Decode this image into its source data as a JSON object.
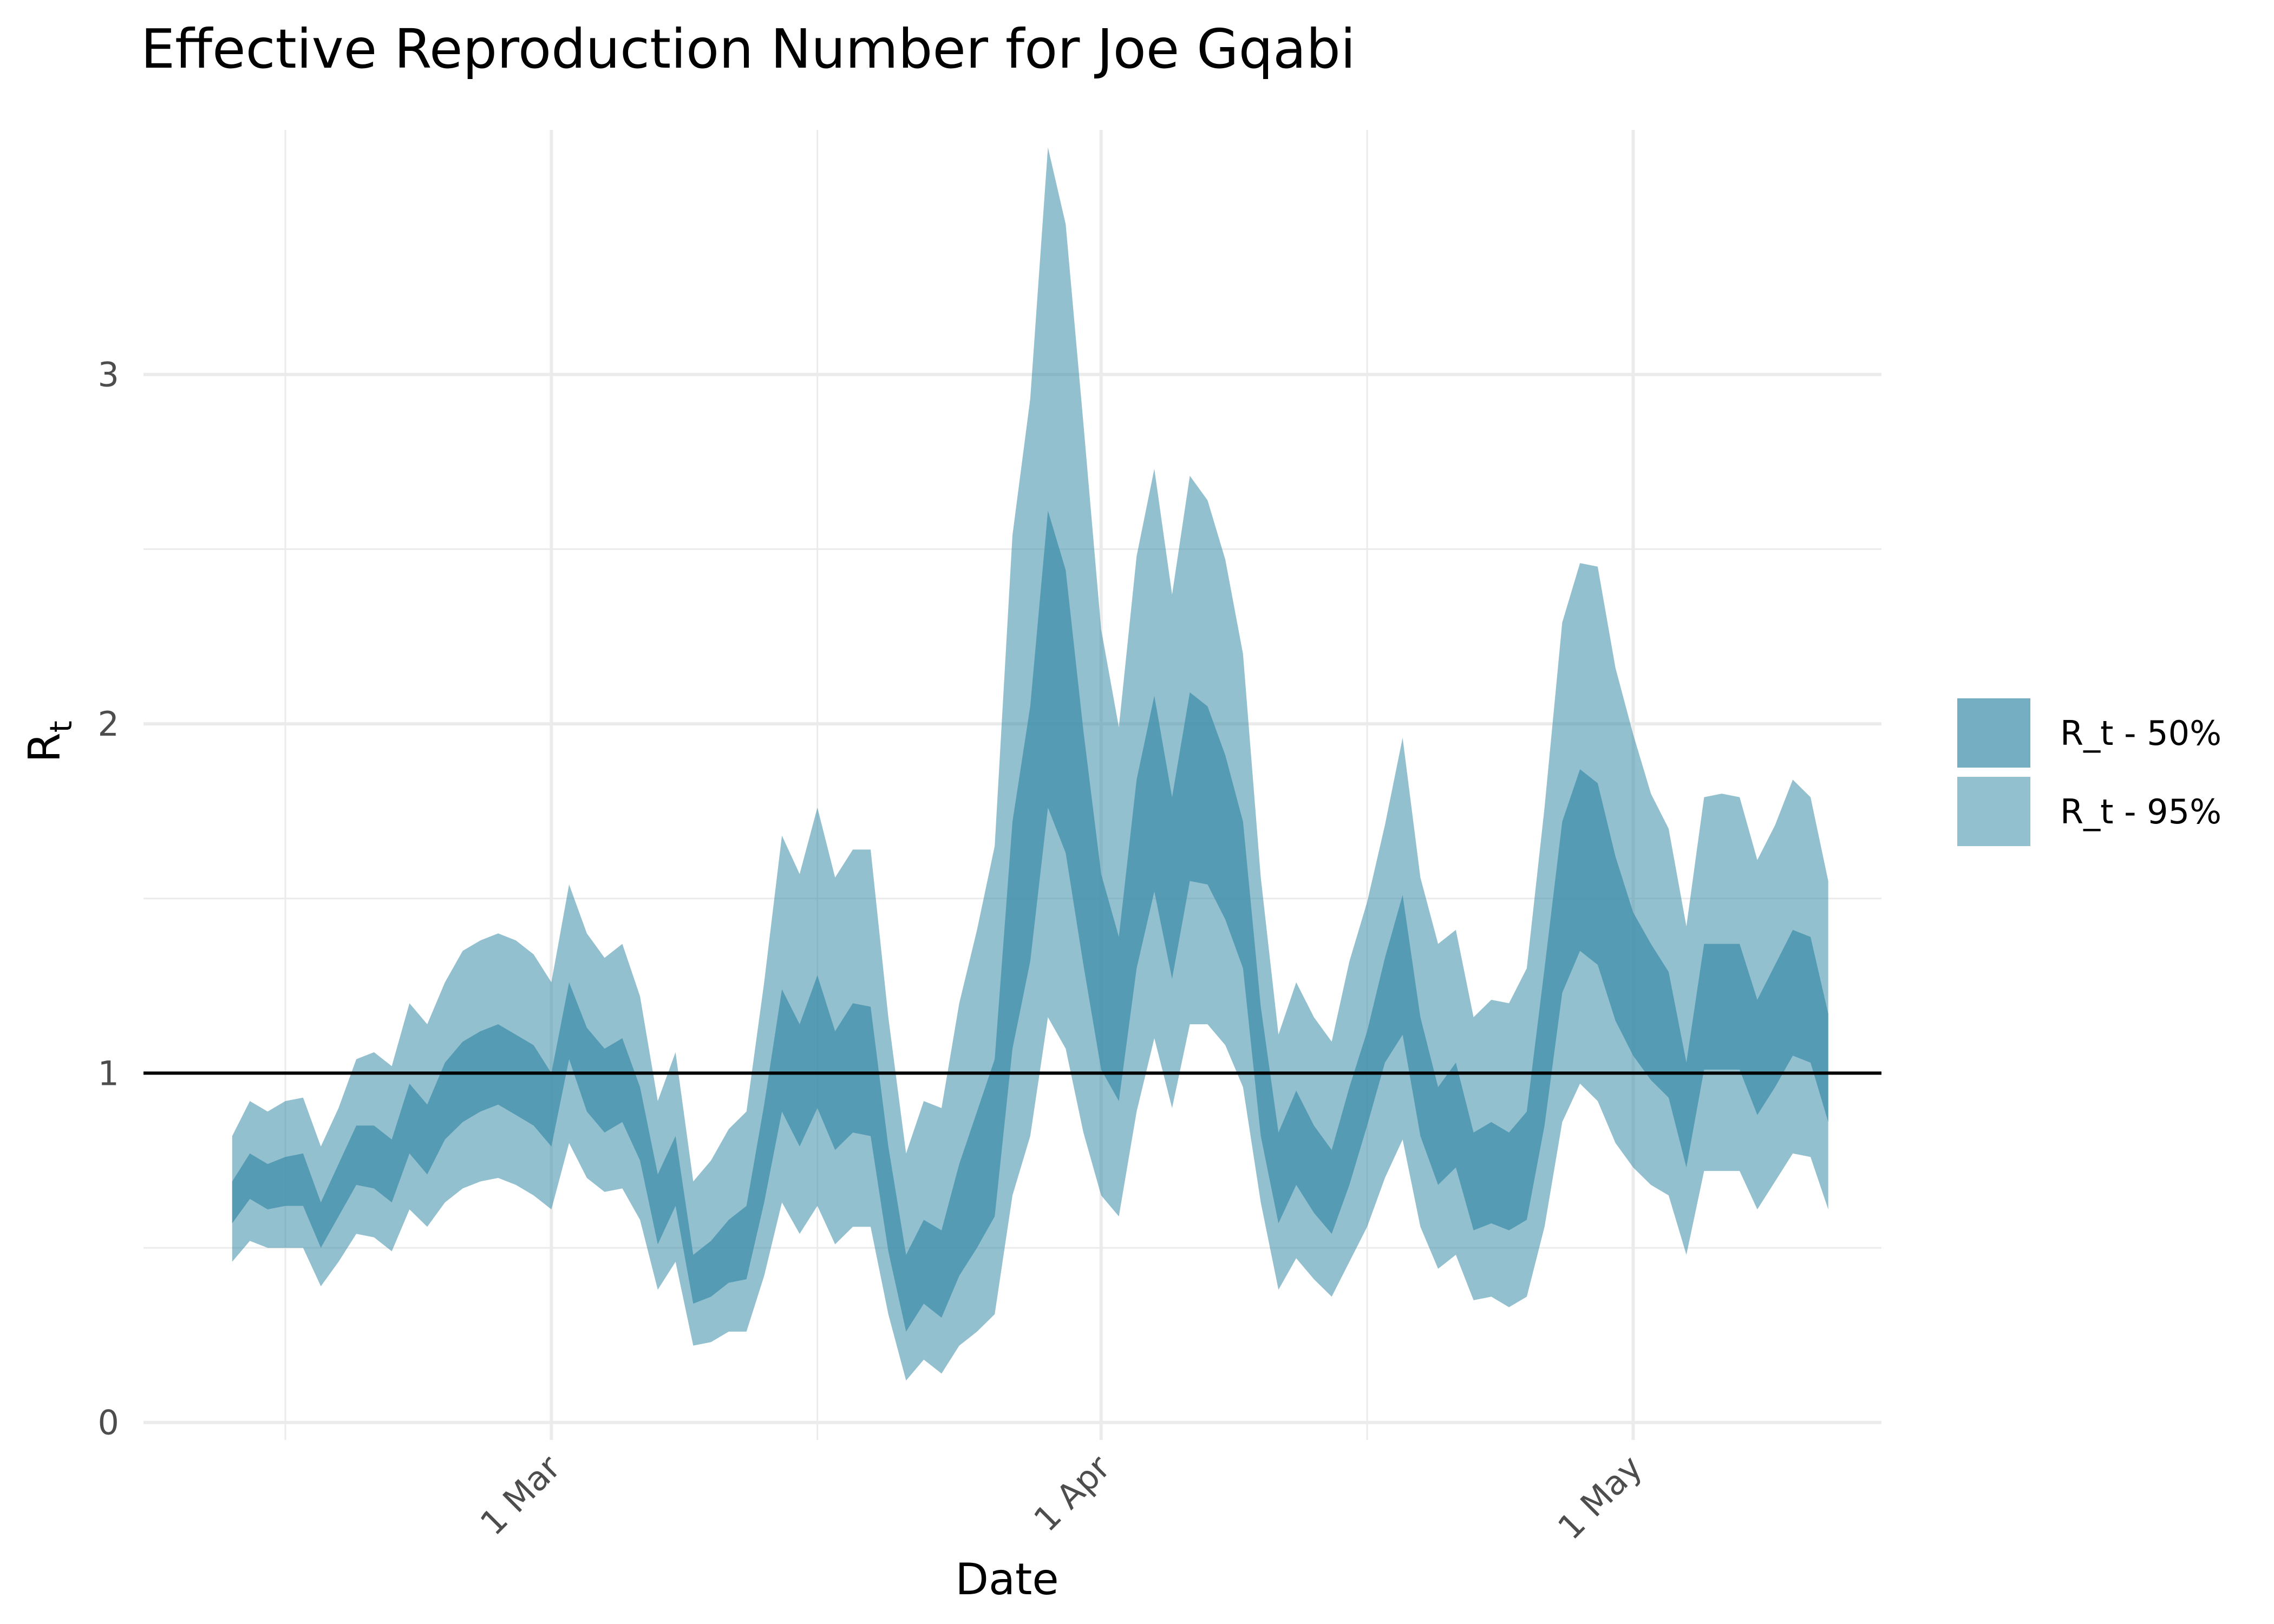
{
  "chart_data": {
    "type": "area",
    "title": "Effective Reproduction Number for Joe Gqabi",
    "xlabel": "Date",
    "ylabel": "R",
    "ylabel_sub": "t",
    "x_ticks": [
      {
        "date": "2020-03-01",
        "label": "1 Mar"
      },
      {
        "date": "2020-04-01",
        "label": "1 Apr"
      },
      {
        "date": "2020-05-01",
        "label": "1 May"
      }
    ],
    "x_minor_ticks": [
      "2020-02-15",
      "2020-03-16",
      "2020-04-16"
    ],
    "xlim": [
      "2020-02-07",
      "2020-05-15"
    ],
    "y_ticks": [
      0,
      1,
      2,
      3
    ],
    "ylim": [
      -0.05,
      3.7
    ],
    "reference_line": 1,
    "grid": true,
    "legend_position": "right",
    "colors": {
      "band50": "#3a8ca8",
      "band95": "#3a8ca8",
      "band50_opacity": 0.7,
      "band95_opacity": 0.55
    },
    "series": [
      {
        "name": "R_t - 50%",
        "x": [
          "2020-02-12",
          "2020-02-13",
          "2020-02-14",
          "2020-02-15",
          "2020-02-16",
          "2020-02-17",
          "2020-02-18",
          "2020-02-19",
          "2020-02-20",
          "2020-02-21",
          "2020-02-22",
          "2020-02-23",
          "2020-02-24",
          "2020-02-25",
          "2020-02-26",
          "2020-02-27",
          "2020-02-28",
          "2020-02-29",
          "2020-03-01",
          "2020-03-02",
          "2020-03-03",
          "2020-03-04",
          "2020-03-05",
          "2020-03-06",
          "2020-03-07",
          "2020-03-08",
          "2020-03-09",
          "2020-03-10",
          "2020-03-11",
          "2020-03-12",
          "2020-03-13",
          "2020-03-14",
          "2020-03-15",
          "2020-03-16",
          "2020-03-17",
          "2020-03-18",
          "2020-03-19",
          "2020-03-20",
          "2020-03-21",
          "2020-03-22",
          "2020-03-23",
          "2020-03-24",
          "2020-03-25",
          "2020-03-26",
          "2020-03-27",
          "2020-03-28",
          "2020-03-29",
          "2020-03-30",
          "2020-03-31",
          "2020-04-01",
          "2020-04-02",
          "2020-04-03",
          "2020-04-04",
          "2020-04-05",
          "2020-04-06",
          "2020-04-07",
          "2020-04-08",
          "2020-04-09",
          "2020-04-10",
          "2020-04-11",
          "2020-04-12",
          "2020-04-13",
          "2020-04-14",
          "2020-04-15",
          "2020-04-16",
          "2020-04-17",
          "2020-04-18",
          "2020-04-19",
          "2020-04-20",
          "2020-04-21",
          "2020-04-22",
          "2020-04-23",
          "2020-04-24",
          "2020-04-25",
          "2020-04-26",
          "2020-04-27",
          "2020-04-28",
          "2020-04-29",
          "2020-04-30",
          "2020-05-01",
          "2020-05-02",
          "2020-05-03",
          "2020-05-04",
          "2020-05-05",
          "2020-05-06",
          "2020-05-07",
          "2020-05-08",
          "2020-05-09",
          "2020-05-10",
          "2020-05-11",
          "2020-05-12"
        ],
        "lower": [
          0.57,
          0.64,
          0.61,
          0.62,
          0.62,
          0.5,
          0.59,
          0.68,
          0.67,
          0.63,
          0.77,
          0.71,
          0.81,
          0.86,
          0.89,
          0.91,
          0.88,
          0.85,
          0.79,
          1.04,
          0.89,
          0.83,
          0.86,
          0.75,
          0.51,
          0.62,
          0.34,
          0.36,
          0.4,
          0.41,
          0.63,
          0.89,
          0.79,
          0.9,
          0.78,
          0.83,
          0.82,
          0.49,
          0.26,
          0.34,
          0.3,
          0.42,
          0.5,
          0.59,
          1.07,
          1.32,
          1.76,
          1.63,
          1.31,
          1.01,
          0.92,
          1.3,
          1.52,
          1.27,
          1.55,
          1.54,
          1.44,
          1.3,
          0.82,
          0.57,
          0.68,
          0.6,
          0.54,
          0.68,
          0.85,
          1.03,
          1.11,
          0.82,
          0.68,
          0.73,
          0.55,
          0.57,
          0.55,
          0.58,
          0.85,
          1.23,
          1.35,
          1.31,
          1.15,
          1.05,
          0.98,
          0.93,
          0.73,
          1.01,
          1.01,
          1.01,
          0.88,
          0.96,
          1.05,
          1.03,
          0.86
        ],
        "upper": [
          0.69,
          0.77,
          0.74,
          0.76,
          0.77,
          0.63,
          0.74,
          0.85,
          0.85,
          0.81,
          0.97,
          0.91,
          1.03,
          1.09,
          1.12,
          1.14,
          1.11,
          1.08,
          1.0,
          1.26,
          1.13,
          1.07,
          1.1,
          0.96,
          0.71,
          0.82,
          0.48,
          0.52,
          0.58,
          0.62,
          0.91,
          1.24,
          1.14,
          1.28,
          1.12,
          1.2,
          1.19,
          0.79,
          0.48,
          0.58,
          0.55,
          0.74,
          0.89,
          1.04,
          1.72,
          2.05,
          2.61,
          2.44,
          1.98,
          1.57,
          1.39,
          1.84,
          2.08,
          1.79,
          2.09,
          2.05,
          1.91,
          1.72,
          1.19,
          0.83,
          0.95,
          0.85,
          0.78,
          0.96,
          1.12,
          1.33,
          1.51,
          1.16,
          0.96,
          1.03,
          0.83,
          0.86,
          0.83,
          0.89,
          1.3,
          1.72,
          1.87,
          1.83,
          1.62,
          1.46,
          1.37,
          1.29,
          1.03,
          1.37,
          1.37,
          1.37,
          1.21,
          1.31,
          1.41,
          1.39,
          1.17
        ]
      },
      {
        "name": "R_t - 95%",
        "x": [
          "2020-02-12",
          "2020-02-13",
          "2020-02-14",
          "2020-02-15",
          "2020-02-16",
          "2020-02-17",
          "2020-02-18",
          "2020-02-19",
          "2020-02-20",
          "2020-02-21",
          "2020-02-22",
          "2020-02-23",
          "2020-02-24",
          "2020-02-25",
          "2020-02-26",
          "2020-02-27",
          "2020-02-28",
          "2020-02-29",
          "2020-03-01",
          "2020-03-02",
          "2020-03-03",
          "2020-03-04",
          "2020-03-05",
          "2020-03-06",
          "2020-03-07",
          "2020-03-08",
          "2020-03-09",
          "2020-03-10",
          "2020-03-11",
          "2020-03-12",
          "2020-03-13",
          "2020-03-14",
          "2020-03-15",
          "2020-03-16",
          "2020-03-17",
          "2020-03-18",
          "2020-03-19",
          "2020-03-20",
          "2020-03-21",
          "2020-03-22",
          "2020-03-23",
          "2020-03-24",
          "2020-03-25",
          "2020-03-26",
          "2020-03-27",
          "2020-03-28",
          "2020-03-29",
          "2020-03-30",
          "2020-03-31",
          "2020-04-01",
          "2020-04-02",
          "2020-04-03",
          "2020-04-04",
          "2020-04-05",
          "2020-04-06",
          "2020-04-07",
          "2020-04-08",
          "2020-04-09",
          "2020-04-10",
          "2020-04-11",
          "2020-04-12",
          "2020-04-13",
          "2020-04-14",
          "2020-04-15",
          "2020-04-16",
          "2020-04-17",
          "2020-04-18",
          "2020-04-19",
          "2020-04-20",
          "2020-04-21",
          "2020-04-22",
          "2020-04-23",
          "2020-04-24",
          "2020-04-25",
          "2020-04-26",
          "2020-04-27",
          "2020-04-28",
          "2020-04-29",
          "2020-04-30",
          "2020-05-01",
          "2020-05-02",
          "2020-05-03",
          "2020-05-04",
          "2020-05-05",
          "2020-05-06",
          "2020-05-07",
          "2020-05-08",
          "2020-05-09",
          "2020-05-10",
          "2020-05-11",
          "2020-05-12"
        ],
        "lower": [
          0.46,
          0.52,
          0.5,
          0.5,
          0.5,
          0.39,
          0.46,
          0.54,
          0.53,
          0.49,
          0.61,
          0.56,
          0.63,
          0.67,
          0.69,
          0.7,
          0.68,
          0.65,
          0.61,
          0.8,
          0.7,
          0.66,
          0.67,
          0.58,
          0.38,
          0.46,
          0.22,
          0.23,
          0.26,
          0.26,
          0.42,
          0.63,
          0.54,
          0.62,
          0.51,
          0.56,
          0.56,
          0.31,
          0.12,
          0.18,
          0.14,
          0.22,
          0.26,
          0.31,
          0.65,
          0.82,
          1.16,
          1.07,
          0.83,
          0.65,
          0.59,
          0.89,
          1.1,
          0.9,
          1.14,
          1.14,
          1.08,
          0.96,
          0.63,
          0.38,
          0.47,
          0.41,
          0.36,
          0.46,
          0.56,
          0.7,
          0.81,
          0.56,
          0.44,
          0.48,
          0.35,
          0.36,
          0.33,
          0.36,
          0.56,
          0.86,
          0.97,
          0.92,
          0.8,
          0.73,
          0.68,
          0.65,
          0.48,
          0.72,
          0.72,
          0.72,
          0.61,
          0.69,
          0.77,
          0.76,
          0.61
        ],
        "upper": [
          0.82,
          0.92,
          0.89,
          0.92,
          0.93,
          0.79,
          0.9,
          1.04,
          1.06,
          1.02,
          1.2,
          1.14,
          1.26,
          1.35,
          1.38,
          1.4,
          1.38,
          1.34,
          1.26,
          1.54,
          1.4,
          1.33,
          1.37,
          1.22,
          0.92,
          1.06,
          0.69,
          0.75,
          0.84,
          0.89,
          1.26,
          1.68,
          1.57,
          1.76,
          1.56,
          1.64,
          1.64,
          1.16,
          0.77,
          0.92,
          0.9,
          1.2,
          1.41,
          1.65,
          2.54,
          2.93,
          3.65,
          3.43,
          2.86,
          2.27,
          1.99,
          2.48,
          2.73,
          2.37,
          2.71,
          2.64,
          2.47,
          2.2,
          1.56,
          1.11,
          1.26,
          1.16,
          1.09,
          1.32,
          1.49,
          1.71,
          1.96,
          1.56,
          1.37,
          1.41,
          1.16,
          1.21,
          1.2,
          1.3,
          1.76,
          2.29,
          2.46,
          2.45,
          2.16,
          1.97,
          1.8,
          1.7,
          1.42,
          1.79,
          1.8,
          1.79,
          1.61,
          1.71,
          1.84,
          1.79,
          1.55
        ]
      }
    ],
    "legend": [
      {
        "label": "R_t - 50%",
        "series": 0
      },
      {
        "label": "R_t - 95%",
        "series": 1
      }
    ]
  }
}
